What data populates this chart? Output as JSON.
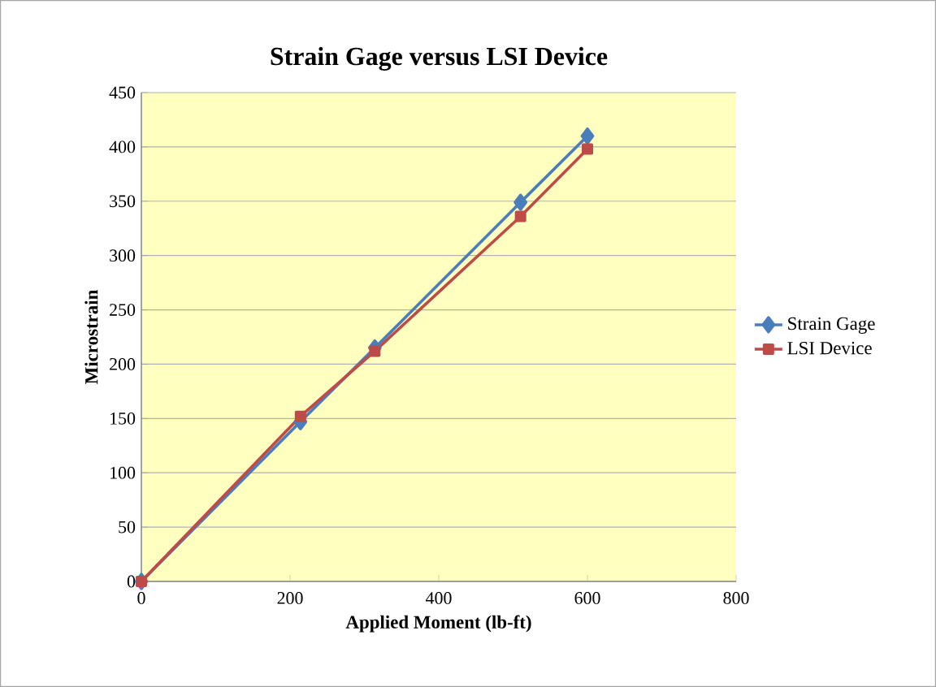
{
  "chart_data": {
    "type": "line",
    "title": "Strain Gage versus LSI Device",
    "xlabel": "Applied Moment (lb-ft)",
    "ylabel": "Microstrain",
    "x": [
      0,
      214,
      314,
      510,
      600
    ],
    "series": [
      {
        "name": "Strain Gage",
        "color": "#4a7ebb",
        "marker": "diamond",
        "values": [
          0,
          147,
          215,
          349,
          410
        ]
      },
      {
        "name": "LSI Device",
        "color": "#be4b48",
        "marker": "square",
        "values": [
          0,
          152,
          212,
          336,
          398
        ]
      }
    ],
    "xlim": [
      0,
      800
    ],
    "xticks": [
      0,
      200,
      400,
      600,
      800
    ],
    "ylim": [
      0,
      450
    ],
    "yticks": [
      0,
      50,
      100,
      150,
      200,
      250,
      300,
      350,
      400,
      450
    ],
    "grid": "y",
    "legend": "right",
    "line_style": "solid"
  }
}
